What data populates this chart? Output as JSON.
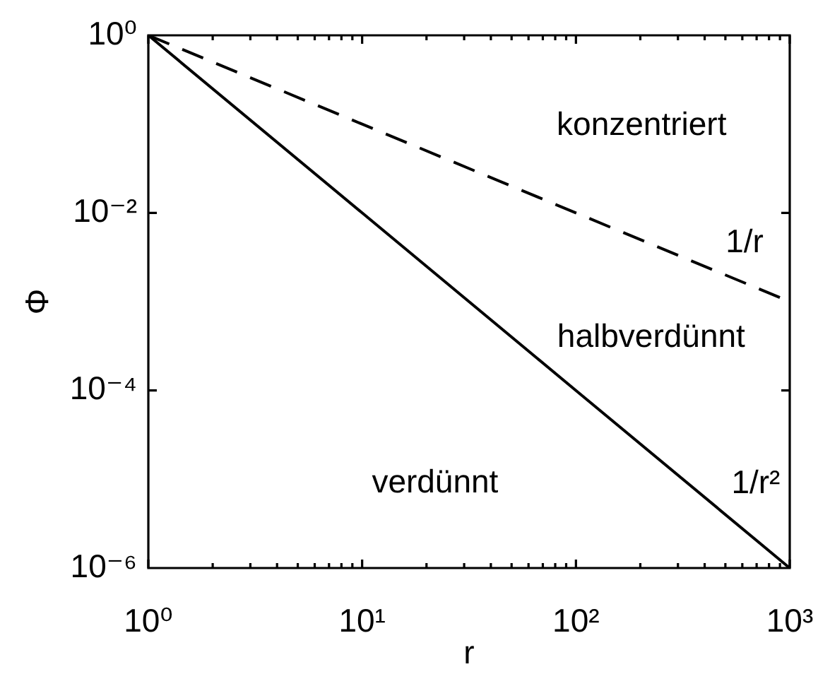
{
  "chart_data": {
    "type": "line",
    "xlabel": "r",
    "ylabel": "Φ",
    "x": [
      1,
      10,
      100,
      1000
    ],
    "series": [
      {
        "name": "1/r",
        "color": "#000000",
        "values": [
          1,
          0.1,
          0.01,
          0.001
        ],
        "line_style": "dashed"
      },
      {
        "name": "1/r²",
        "color": "#000000",
        "values": [
          1,
          0.01,
          0.0001,
          1e-06
        ],
        "line_style": "solid"
      }
    ],
    "annotations": [
      "konzentriert",
      "halbverdünnt",
      "verdünnt"
    ],
    "log": "xy",
    "xlim": [
      1,
      1000
    ],
    "ylim": [
      1e-06,
      1
    ],
    "xticks": [
      {
        "value": 1,
        "label": "10⁰"
      },
      {
        "value": 2,
        "label": null
      },
      {
        "value": 3,
        "label": null
      },
      {
        "value": 4,
        "label": null
      },
      {
        "value": 5,
        "label": null
      },
      {
        "value": 6,
        "label": null
      },
      {
        "value": 7,
        "label": null
      },
      {
        "value": 8,
        "label": null
      },
      {
        "value": 9,
        "label": null
      },
      {
        "value": 10,
        "label": "10¹"
      },
      {
        "value": 20,
        "label": null
      },
      {
        "value": 30,
        "label": null
      },
      {
        "value": 40,
        "label": null
      },
      {
        "value": 50,
        "label": null
      },
      {
        "value": 60,
        "label": null
      },
      {
        "value": 70,
        "label": null
      },
      {
        "value": 80,
        "label": null
      },
      {
        "value": 90,
        "label": null
      },
      {
        "value": 100,
        "label": "10²"
      },
      {
        "value": 200,
        "label": null
      },
      {
        "value": 300,
        "label": null
      },
      {
        "value": 400,
        "label": null
      },
      {
        "value": 500,
        "label": null
      },
      {
        "value": 600,
        "label": null
      },
      {
        "value": 700,
        "label": null
      },
      {
        "value": 800,
        "label": null
      },
      {
        "value": 900,
        "label": null
      },
      {
        "value": 1000,
        "label": "10³"
      }
    ],
    "yticks": [
      {
        "value": 1e-06,
        "label": "10⁻⁶"
      },
      {
        "value": 0.0001,
        "label": "10⁻⁴"
      },
      {
        "value": 0.01,
        "label": "10⁻²"
      },
      {
        "value": 1,
        "label": "10⁰"
      }
    ]
  }
}
